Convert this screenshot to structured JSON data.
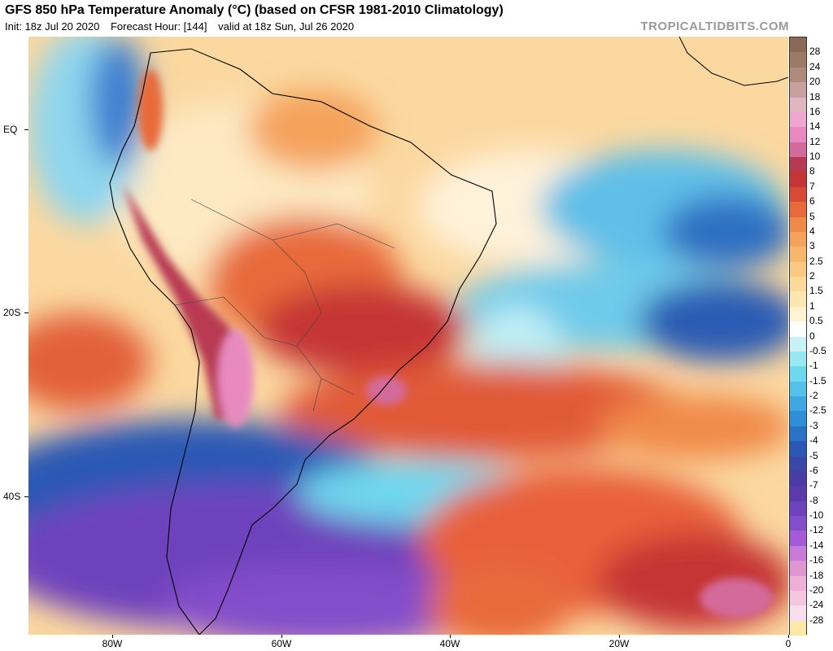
{
  "header": {
    "title": "GFS 850 hPa Temperature Anomaly (°C) (based on CFSR 1981-2010 Climatology)",
    "init": "Init: 18z Jul 20 2020",
    "forecast": "Forecast Hour: [144]",
    "valid": "valid at 18z Sun, Jul 26 2020",
    "brand": "TROPICALTIDBITS.COM"
  },
  "axes": {
    "lat_labels": [
      "EQ",
      "20S",
      "40S"
    ],
    "lon_labels": [
      "80W",
      "60W",
      "40W",
      "20W",
      "0"
    ]
  },
  "colorbar": {
    "labels": [
      "28",
      "24",
      "20",
      "18",
      "16",
      "14",
      "12",
      "10",
      "8",
      "7",
      "6",
      "5",
      "4",
      "3",
      "2.5",
      "2",
      "1.5",
      "1",
      "0.5",
      "0",
      "-0.5",
      "-1",
      "-1.5",
      "-2",
      "-2.5",
      "-3",
      "-4",
      "-5",
      "-6",
      "-7",
      "-8",
      "-10",
      "-12",
      "-14",
      "-16",
      "-18",
      "-20",
      "-24",
      "-28"
    ],
    "colors": [
      "#8a6a55",
      "#9b7a66",
      "#b08a7a",
      "#c9a0a0",
      "#e0b6c2",
      "#f0a6d0",
      "#e88ac0",
      "#d46a9a",
      "#b83a52",
      "#c53535",
      "#d84a35",
      "#e86a3a",
      "#f08a48",
      "#f4a25c",
      "#f7b66e",
      "#f9c983",
      "#fbd998",
      "#fde6b0",
      "#fff3d2",
      "#ffffff",
      "#c9f2f6",
      "#98e8f2",
      "#6fd7ee",
      "#52c2ea",
      "#3fa8e2",
      "#2e8ed8",
      "#2a72c8",
      "#2c58b5",
      "#3a46a8",
      "#4a3ca4",
      "#5b3aae",
      "#6e42bc",
      "#844ecb",
      "#a35bd8",
      "#c97ad8",
      "#e096d0",
      "#efb0d8",
      "#f4c6e0",
      "#f8ddea"
    ]
  },
  "legend_bottom_color": "#fde9a6"
}
